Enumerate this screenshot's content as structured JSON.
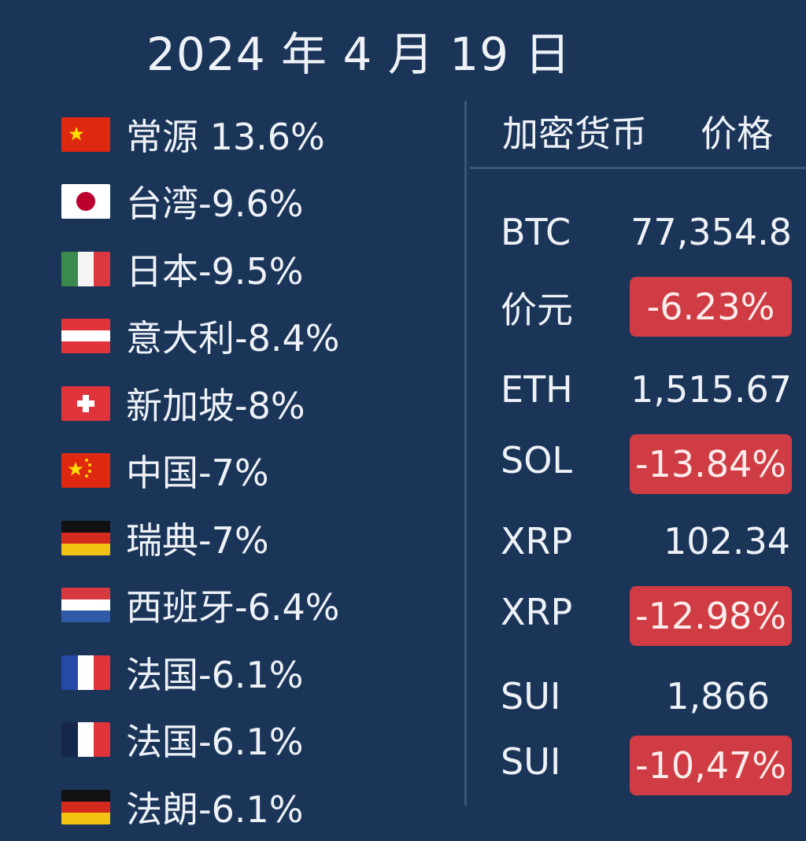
{
  "date": "2024 年 4 月 19 日",
  "left_list": [
    {
      "flag": "china-flag",
      "text": "常源 13.6%"
    },
    {
      "flag": "japan-flag",
      "text": "台湾-9.6%"
    },
    {
      "flag": "italy-flag",
      "text": "日本-9.5%"
    },
    {
      "flag": "austria-flag",
      "text": "意大利-8.4%"
    },
    {
      "flag": "switzerland-flag",
      "text": "新加坡-8%"
    },
    {
      "flag": "china-flag",
      "text": "中国-7%"
    },
    {
      "flag": "germany-flag",
      "text": "瑞典-7%"
    },
    {
      "flag": "netherlands-flag",
      "text": "西班牙-6.4%"
    },
    {
      "flag": "france-flag",
      "text": "法国-6.1%"
    },
    {
      "flag": "france-flag",
      "text": "法国-6.1%"
    },
    {
      "flag": "germany-flag",
      "text": "法朗-6.1%"
    }
  ],
  "table": {
    "header_currency": "加密货币",
    "header_price": "价格",
    "rows": [
      {
        "symbol": "BTC",
        "value": "77,354.8",
        "negative": false
      },
      {
        "symbol": "价元",
        "value": "-6.23%",
        "negative": true
      },
      {
        "symbol": "ETH",
        "value": "1,515.67",
        "negative": false
      },
      {
        "symbol": "SOL",
        "value": "-13.84%",
        "negative": true
      },
      {
        "symbol": "XRP",
        "value": "102.34",
        "negative": false
      },
      {
        "symbol": "XRP",
        "value": "-12.98%",
        "negative": true
      },
      {
        "symbol": "SUI",
        "value": "1,866",
        "negative": false
      },
      {
        "symbol": "SUI",
        "value": "-10,47%",
        "negative": true
      }
    ]
  },
  "colors": {
    "background": "#1b3559",
    "negative_badge": "#cf3c43",
    "divider": "#3b5478"
  }
}
